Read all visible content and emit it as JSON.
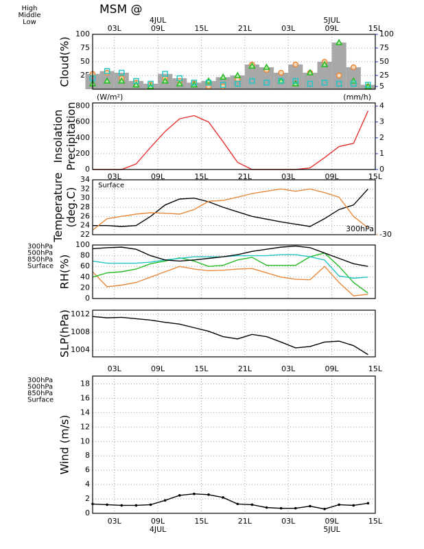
{
  "title": "MSM @",
  "time_axis": {
    "x": [
      0,
      2,
      4,
      6,
      8,
      10,
      12,
      14,
      16,
      18,
      20,
      22,
      24,
      26,
      28,
      30,
      32,
      34,
      36,
      38
    ],
    "xlim": [
      0,
      39
    ],
    "xticks": [
      {
        "value": 3,
        "label": "03L"
      },
      {
        "value": 9,
        "label": "09L"
      },
      {
        "value": 15,
        "label": "15L"
      },
      {
        "value": 21,
        "label": "21L"
      },
      {
        "value": 27,
        "label": "03L"
      },
      {
        "value": 33,
        "label": "09L"
      },
      {
        "value": 39,
        "label": "15L"
      }
    ],
    "dates": [
      {
        "value": 9,
        "label": "4JUL"
      },
      {
        "value": 33,
        "label": "5JUL"
      }
    ]
  },
  "chart_data": [
    {
      "type": "bar",
      "ylabel": [
        "Cloud(%)"
      ],
      "bar_color": "#a8a8a8",
      "values": [
        28,
        33,
        30,
        15,
        10,
        28,
        20,
        12,
        15,
        22,
        25,
        45,
        40,
        30,
        45,
        30,
        50,
        85,
        40,
        8
      ],
      "series": [
        {
          "name": "High",
          "color": "#e8883a",
          "marker": "circle",
          "values": [
            28,
            30,
            20,
            12,
            8,
            20,
            15,
            10,
            5,
            5,
            18,
            45,
            35,
            30,
            45,
            30,
            50,
            25,
            40,
            5
          ]
        },
        {
          "name": "Middle",
          "color": "#22bb22",
          "marker": "triangle",
          "values": [
            10,
            15,
            15,
            8,
            5,
            15,
            10,
            8,
            15,
            22,
            25,
            42,
            40,
            15,
            10,
            30,
            45,
            85,
            15,
            5
          ]
        },
        {
          "name": "Low",
          "color": "#22c4c4",
          "marker": "square",
          "values": [
            20,
            33,
            30,
            15,
            10,
            28,
            20,
            12,
            12,
            8,
            10,
            15,
            12,
            15,
            15,
            10,
            12,
            10,
            10,
            8
          ]
        }
      ],
      "ylim": [
        0,
        100
      ],
      "yticks": [
        25,
        50,
        75,
        100
      ],
      "y2lim": [
        0,
        100
      ],
      "y2ticks": [
        5,
        25,
        50,
        75,
        100
      ],
      "y2color": "#2233cc",
      "grid": true
    },
    {
      "type": "line",
      "ylabel": [
        "Insolation",
        "Precipitation"
      ],
      "y_unit": "(W/m²)",
      "y_unit_color": "#e83030",
      "y2_unit": "(mm/h)",
      "y2color": "#2233cc",
      "series": [
        {
          "color": "#e83030",
          "values": [
            0,
            0,
            0,
            70,
            280,
            480,
            640,
            680,
            600,
            350,
            90,
            0,
            0,
            0,
            0,
            20,
            150,
            290,
            330,
            740
          ]
        }
      ],
      "ylim": [
        0,
        840
      ],
      "yticks": [
        0,
        200,
        400,
        600,
        800
      ],
      "y2lim": [
        0,
        4.2
      ],
      "y2ticks": [
        0,
        1,
        2,
        3,
        4
      ],
      "grid": true
    },
    {
      "type": "line",
      "ylabel": [
        "Temperature",
        "(deg.C)"
      ],
      "series": [
        {
          "name": "Surface",
          "color": "#000000",
          "values": [
            24,
            24,
            23.8,
            24,
            26,
            28.5,
            29.8,
            30,
            29.2,
            28,
            27,
            26,
            25.4,
            24.8,
            24.3,
            23.8,
            25.5,
            27.5,
            28.5,
            32
          ]
        },
        {
          "name": "300hPa",
          "color": "#e8883a",
          "axis": "y2",
          "values": [
            -29,
            -26.5,
            -26,
            -25.5,
            -25.2,
            -25.3,
            -25.5,
            -24.5,
            -22.7,
            -22.5,
            -21.8,
            -21,
            -20.5,
            -20,
            -20.5,
            -20,
            -20.8,
            -21.8,
            -26,
            -28.5
          ]
        }
      ],
      "ylim": [
        22,
        34
      ],
      "yticks": [
        22,
        24,
        26,
        28,
        30,
        32,
        34
      ],
      "y2lim": [
        -30,
        -18
      ],
      "y2ticks": [
        -30
      ],
      "y2color": "#e8883a",
      "grid": true
    },
    {
      "type": "line",
      "ylabel": [
        "RH(%)"
      ],
      "series": [
        {
          "name": "300hPa",
          "color": "#e8883a",
          "values": [
            50,
            22,
            25,
            30,
            40,
            50,
            60,
            55,
            52,
            53,
            55,
            56,
            48,
            40,
            36,
            35,
            60,
            30,
            5,
            8
          ]
        },
        {
          "name": "500hPa",
          "color": "#22bb22",
          "values": [
            40,
            48,
            50,
            55,
            65,
            70,
            76,
            70,
            60,
            62,
            72,
            77,
            62,
            62,
            62,
            78,
            85,
            60,
            30,
            10
          ]
        },
        {
          "name": "850hPa",
          "color": "#22c4c4",
          "values": [
            70,
            66,
            66,
            66,
            68,
            72,
            75,
            78,
            78,
            78,
            80,
            80,
            80,
            82,
            82,
            78,
            72,
            42,
            38,
            40
          ]
        },
        {
          "name": "Surface",
          "color": "#000000",
          "values": [
            93,
            95,
            96,
            92,
            80,
            72,
            70,
            72,
            75,
            78,
            82,
            88,
            92,
            96,
            98,
            95,
            85,
            75,
            65,
            60
          ]
        }
      ],
      "ylim": [
        0,
        100
      ],
      "yticks": [
        0,
        20,
        40,
        60,
        80,
        100
      ],
      "grid": true
    },
    {
      "type": "line",
      "ylabel": [
        "SLP(hPa)"
      ],
      "series": [
        {
          "color": "#000000",
          "values": [
            1011.5,
            1011.2,
            1011.3,
            1011,
            1010.7,
            1010.2,
            1009.8,
            1009,
            1008.2,
            1007,
            1006.5,
            1007.5,
            1007,
            1005.8,
            1004.5,
            1004.8,
            1005.8,
            1006,
            1005,
            1003
          ]
        }
      ],
      "ylim": [
        1002.5,
        1012.9
      ],
      "yticks": [
        1004,
        1008,
        1012
      ],
      "grid": true
    },
    {
      "type": "line",
      "ylabel": [
        "Wind  (m/s)"
      ],
      "levels": [
        {
          "name": "300hPa",
          "color": "#e8883a"
        },
        {
          "name": "500hPa",
          "color": "#22bb22"
        },
        {
          "name": "850hPa",
          "color": "#22c4c4"
        },
        {
          "name": "Surface",
          "color": "#000000"
        }
      ],
      "series": [
        {
          "color": "#000000",
          "marker": "dot",
          "values": [
            1.3,
            1.2,
            1.1,
            1.1,
            1.2,
            1.8,
            2.5,
            2.7,
            2.6,
            2.2,
            1.3,
            1.2,
            0.8,
            0.7,
            0.7,
            1,
            0.6,
            1.2,
            1.1,
            1.4
          ]
        }
      ],
      "ylim": [
        0,
        19.1
      ],
      "yticks": [
        0,
        2,
        4,
        6,
        8,
        10,
        12,
        14,
        16,
        18
      ],
      "grid": true
    }
  ]
}
